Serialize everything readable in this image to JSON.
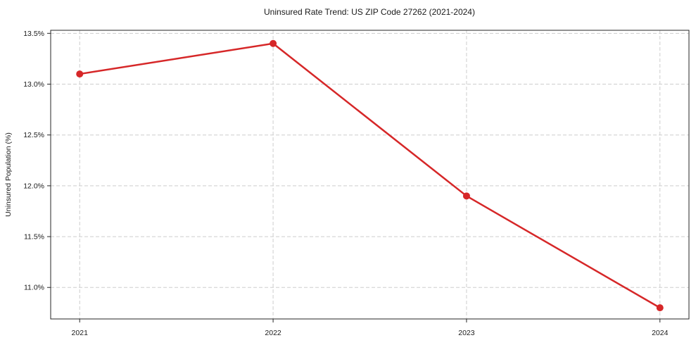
{
  "chart_data": {
    "type": "line",
    "title": "Uninsured Rate Trend: US ZIP Code 27262 (2021-2024)",
    "xlabel": "",
    "ylabel": "Uninsured Population (%)",
    "x": [
      2021,
      2022,
      2023,
      2024
    ],
    "x_tick_labels": [
      "2021",
      "2022",
      "2023",
      "2024"
    ],
    "series": [
      {
        "name": "uninsured-rate",
        "values": [
          13.1,
          13.4,
          11.9,
          10.8
        ]
      }
    ],
    "y_ticks": [
      11.0,
      11.5,
      12.0,
      12.5,
      13.0,
      13.5
    ],
    "y_tick_labels": [
      "11.0%",
      "11.5%",
      "12.0%",
      "12.5%",
      "13.0%",
      "13.5%"
    ],
    "xlim": [
      2020.85,
      2024.15
    ],
    "ylim": [
      10.69,
      13.53
    ],
    "grid": true,
    "legend": "none",
    "line_color": "#d62728",
    "marker_color": "#d62728",
    "grid_color": "#cdcdcd",
    "spine_color": "#262626",
    "tick_color": "#262626",
    "text_color": "#1a1a1a",
    "background_color": "#ffffff"
  }
}
